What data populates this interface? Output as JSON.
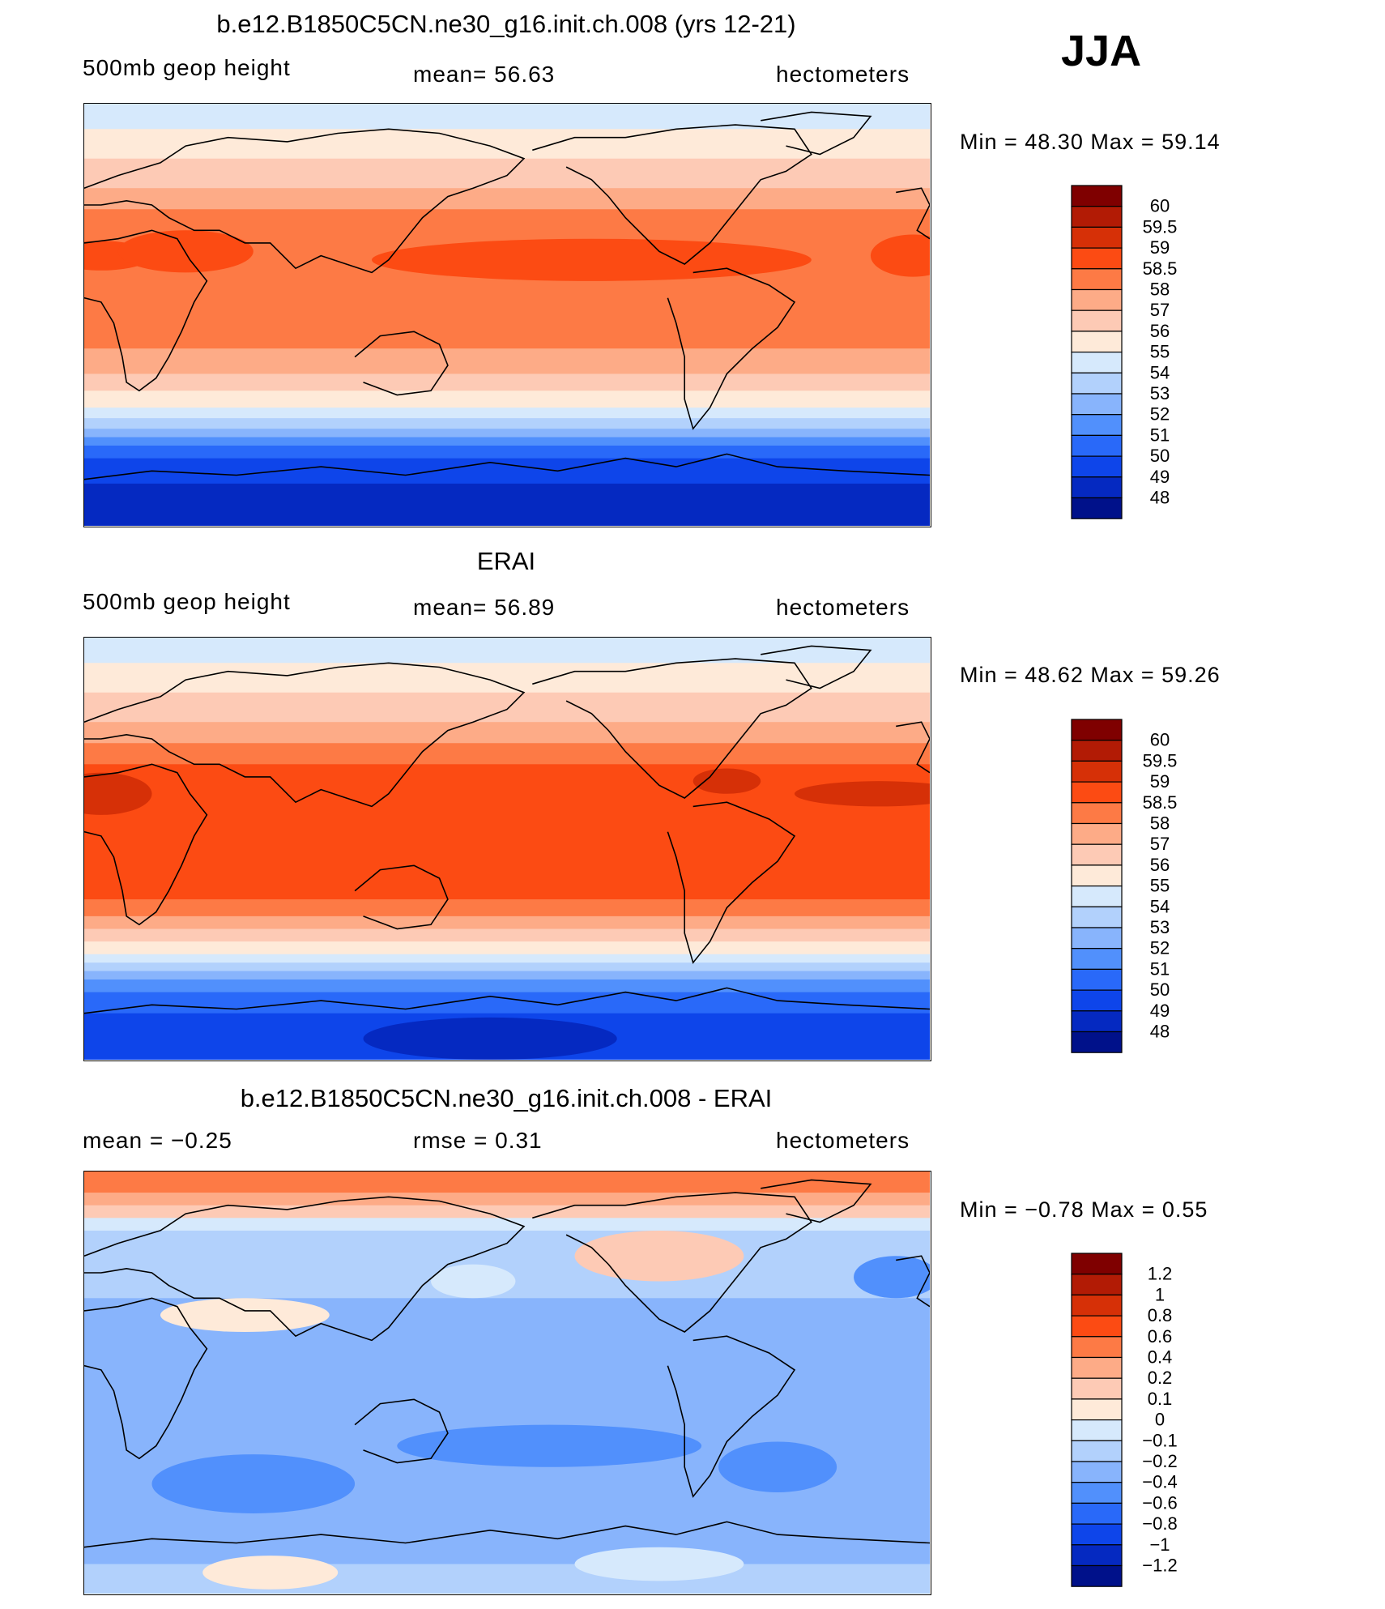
{
  "season": "JJA",
  "panels": [
    {
      "id": "model",
      "title": "b.e12.B1850C5CN.ne30_g16.init.ch.008 (yrs 12-21)",
      "left_label": "500mb geop height",
      "mean_text": "mean=   56.63",
      "units": "hectometers",
      "minmax": "Min =   48.30 Max =   59.14",
      "colorbar": {
        "colors": [
          "#7f0000",
          "#b21b05",
          "#d63007",
          "#fc4b13",
          "#fd7a45",
          "#fdab87",
          "#fdcab5",
          "#feead9",
          "#d6e9fc",
          "#b2d1fc",
          "#88b4fc",
          "#5190fc",
          "#2969f9",
          "#0e45ea",
          "#0529c1",
          "#00118a"
        ],
        "labels": [
          "60",
          "59.5",
          "59",
          "58.5",
          "58",
          "57",
          "56",
          "55",
          "54",
          "53",
          "52",
          "51",
          "50",
          "49",
          "48"
        ]
      },
      "field": "model"
    },
    {
      "id": "obs",
      "title": "ERAI",
      "left_label": "500mb geop height",
      "mean_text": "mean=   56.89",
      "units": "hectometers",
      "minmax": "Min =   48.62 Max =   59.26",
      "colorbar": {
        "colors": [
          "#7f0000",
          "#b21b05",
          "#d63007",
          "#fc4b13",
          "#fd7a45",
          "#fdab87",
          "#fdcab5",
          "#feead9",
          "#d6e9fc",
          "#b2d1fc",
          "#88b4fc",
          "#5190fc",
          "#2969f9",
          "#0e45ea",
          "#0529c1",
          "#00118a"
        ],
        "labels": [
          "60",
          "59.5",
          "59",
          "58.5",
          "58",
          "57",
          "56",
          "55",
          "54",
          "53",
          "52",
          "51",
          "50",
          "49",
          "48"
        ]
      },
      "field": "obs"
    },
    {
      "id": "diff",
      "title": "b.e12.B1850C5CN.ne30_g16.init.ch.008 - ERAI",
      "left_label": "mean =   −0.25",
      "mean_text": "rmse =    0.31",
      "units": "hectometers",
      "minmax": "Min =  −0.78  Max =    0.55",
      "colorbar": {
        "colors": [
          "#7f0000",
          "#b21b05",
          "#d63007",
          "#fc4b13",
          "#fd7a45",
          "#fdab87",
          "#fdcab5",
          "#feead9",
          "#d6e9fc",
          "#b2d1fc",
          "#88b4fc",
          "#5190fc",
          "#2969f9",
          "#0e45ea",
          "#0529c1",
          "#00118a"
        ],
        "labels": [
          "1.2",
          "1",
          "0.8",
          "0.6",
          "0.4",
          "0.2",
          "0.1",
          "0",
          "−0.1",
          "−0.2",
          "−0.4",
          "−0.6",
          "−0.8",
          "−1",
          "−1.2"
        ]
      },
      "field": "diff"
    }
  ]
}
